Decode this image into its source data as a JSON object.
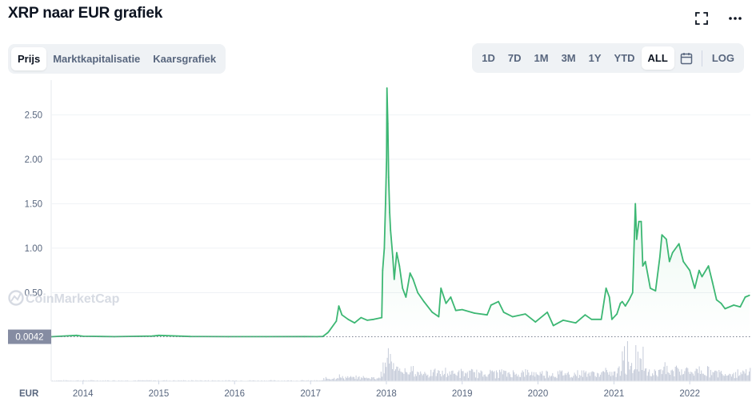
{
  "header": {
    "title": "XRP naar EUR grafiek",
    "fullscreen_icon": "fullscreen-icon",
    "more_icon": "more-horizontal-icon"
  },
  "tabs": [
    {
      "label": "Prijs",
      "active": true
    },
    {
      "label": "Marktkapitalisatie",
      "active": false
    },
    {
      "label": "Kaarsgrafiek",
      "active": false
    }
  ],
  "ranges": [
    {
      "label": "1D",
      "active": false
    },
    {
      "label": "7D",
      "active": false
    },
    {
      "label": "1M",
      "active": false
    },
    {
      "label": "3M",
      "active": false
    },
    {
      "label": "1Y",
      "active": false
    },
    {
      "label": "YTD",
      "active": false
    },
    {
      "label": "ALL",
      "active": true
    }
  ],
  "calendar_icon": "calendar-icon",
  "log_label": "LOG",
  "watermark": "CoinMarketCap",
  "colors": {
    "line": "#3cb773",
    "volume": "#c5cbd9",
    "grid": "#eff2f5",
    "axis_text": "#58667e",
    "badge_bg": "#858ca2"
  },
  "chart_data": {
    "type": "line",
    "title": "XRP naar EUR grafiek",
    "y_unit": "EUR",
    "ylim": [
      0,
      2.8
    ],
    "yticks": [
      "0.50",
      "1.00",
      "1.50",
      "2.00",
      "2.50"
    ],
    "xticks": [
      "2014",
      "2015",
      "2016",
      "2017",
      "2018",
      "2019",
      "2020",
      "2021",
      "2022"
    ],
    "start_marker_label": "0.0042",
    "grid": true,
    "series": [
      {
        "points": [
          [
            "2013-08",
            0.0042
          ],
          [
            "2013-12",
            0.02
          ],
          [
            "2014-01",
            0.01
          ],
          [
            "2014-06",
            0.005
          ],
          [
            "2014-12",
            0.012
          ],
          [
            "2015-01",
            0.02
          ],
          [
            "2015-06",
            0.007
          ],
          [
            "2015-12",
            0.005
          ],
          [
            "2016-06",
            0.005
          ],
          [
            "2016-12",
            0.006
          ],
          [
            "2017-02",
            0.005
          ],
          [
            "2017-03",
            0.007
          ],
          [
            "2017-03-25",
            0.05
          ],
          [
            "2017-04",
            0.07
          ],
          [
            "2017-05-05",
            0.18
          ],
          [
            "2017-05-17",
            0.35
          ],
          [
            "2017-06",
            0.25
          ],
          [
            "2017-07",
            0.2
          ],
          [
            "2017-08",
            0.16
          ],
          [
            "2017-09",
            0.22
          ],
          [
            "2017-10",
            0.19
          ],
          [
            "2017-11",
            0.2
          ],
          [
            "2017-12-10",
            0.22
          ],
          [
            "2017-12-14",
            0.75
          ],
          [
            "2017-12-22",
            1.0
          ],
          [
            "2017-12-28",
            1.5
          ],
          [
            "2018-01-02",
            2.0
          ],
          [
            "2018-01-04",
            2.8
          ],
          [
            "2018-01-08",
            2.4
          ],
          [
            "2018-01-12",
            1.8
          ],
          [
            "2018-01-17",
            1.4
          ],
          [
            "2018-01-21",
            1.2
          ],
          [
            "2018-02-01",
            0.9
          ],
          [
            "2018-02-08",
            0.65
          ],
          [
            "2018-02-20",
            0.95
          ],
          [
            "2018-03-05",
            0.8
          ],
          [
            "2018-03-20",
            0.55
          ],
          [
            "2018-04-05",
            0.45
          ],
          [
            "2018-04-25",
            0.72
          ],
          [
            "2018-05-10",
            0.65
          ],
          [
            "2018-06-01",
            0.5
          ],
          [
            "2018-07-01",
            0.4
          ],
          [
            "2018-08-10",
            0.28
          ],
          [
            "2018-09-10",
            0.23
          ],
          [
            "2018-09-21",
            0.55
          ],
          [
            "2018-10-15",
            0.38
          ],
          [
            "2018-11-07",
            0.45
          ],
          [
            "2018-12-01",
            0.3
          ],
          [
            "2019-01-01",
            0.31
          ],
          [
            "2019-03-01",
            0.27
          ],
          [
            "2019-05-01",
            0.25
          ],
          [
            "2019-05-20",
            0.36
          ],
          [
            "2019-06-25",
            0.4
          ],
          [
            "2019-07-20",
            0.28
          ],
          [
            "2019-09-01",
            0.23
          ],
          [
            "2019-11-01",
            0.26
          ],
          [
            "2019-12-20",
            0.17
          ],
          [
            "2020-02-15",
            0.28
          ],
          [
            "2020-03-15",
            0.13
          ],
          [
            "2020-05-01",
            0.19
          ],
          [
            "2020-07-01",
            0.16
          ],
          [
            "2020-08-15",
            0.25
          ],
          [
            "2020-09-15",
            0.2
          ],
          [
            "2020-11-01",
            0.2
          ],
          [
            "2020-11-24",
            0.55
          ],
          [
            "2020-12-10",
            0.45
          ],
          [
            "2020-12-22",
            0.2
          ],
          [
            "2021-01-15",
            0.26
          ],
          [
            "2021-02-01",
            0.38
          ],
          [
            "2021-02-10",
            0.4
          ],
          [
            "2021-02-25",
            0.35
          ],
          [
            "2021-03-15",
            0.42
          ],
          [
            "2021-04-01",
            0.5
          ],
          [
            "2021-04-10",
            1.2
          ],
          [
            "2021-04-14",
            1.5
          ],
          [
            "2021-04-20",
            1.1
          ],
          [
            "2021-05-01",
            1.3
          ],
          [
            "2021-05-12",
            1.3
          ],
          [
            "2021-05-20",
            0.8
          ],
          [
            "2021-06-01",
            0.85
          ],
          [
            "2021-06-25",
            0.55
          ],
          [
            "2021-07-20",
            0.52
          ],
          [
            "2021-08-10",
            0.9
          ],
          [
            "2021-08-20",
            1.15
          ],
          [
            "2021-09-10",
            1.1
          ],
          [
            "2021-09-25",
            0.85
          ],
          [
            "2021-10-10",
            0.95
          ],
          [
            "2021-11-10",
            1.05
          ],
          [
            "2021-12-01",
            0.85
          ],
          [
            "2022-01-01",
            0.75
          ],
          [
            "2022-01-25",
            0.55
          ],
          [
            "2022-02-15",
            0.75
          ],
          [
            "2022-03-01",
            0.68
          ],
          [
            "2022-04-01",
            0.8
          ],
          [
            "2022-04-20",
            0.62
          ],
          [
            "2022-05-10",
            0.42
          ],
          [
            "2022-06-01",
            0.38
          ],
          [
            "2022-06-20",
            0.32
          ],
          [
            "2022-08-01",
            0.36
          ],
          [
            "2022-09-01",
            0.34
          ],
          [
            "2022-09-25",
            0.45
          ],
          [
            "2022-10-15",
            0.47
          ]
        ]
      }
    ]
  }
}
